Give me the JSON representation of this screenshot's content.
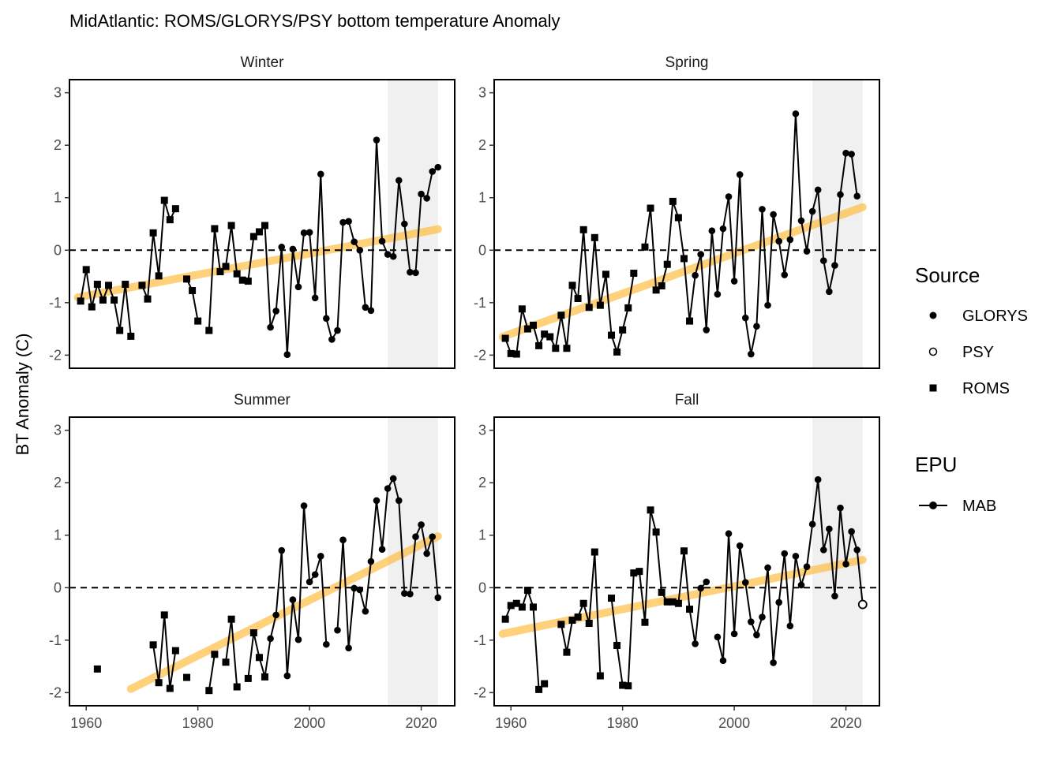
{
  "chart_data": {
    "type": "line",
    "title": "MidAtlantic: ROMS/GLORYS/PSY bottom temperature Anomaly",
    "ylabel": "BT Anomaly (C)",
    "xlabel": "",
    "xlim": [
      1957,
      2026
    ],
    "ylim": [
      -2.25,
      3.25
    ],
    "x_ticks": [
      1960,
      1980,
      2000,
      2020
    ],
    "y_ticks": [
      -2,
      -1,
      0,
      1,
      2,
      3
    ],
    "reference_line": 0,
    "highlight_years": [
      2014,
      2023
    ],
    "grid": false,
    "legend_source": {
      "title": "Source",
      "items": [
        {
          "name": "GLORYS",
          "shape": "filled-circle"
        },
        {
          "name": "PSY",
          "shape": "open-circle"
        },
        {
          "name": "ROMS",
          "shape": "square"
        }
      ]
    },
    "legend_epu": {
      "title": "EPU",
      "items": [
        {
          "name": "MAB",
          "shape": "line-point"
        }
      ]
    },
    "colors": {
      "series": "#000000",
      "trend": "#fdb833",
      "highlight": "#f0f0f0",
      "zero_line": "#000000"
    },
    "panels": [
      {
        "name": "Winter",
        "trend": [
          [
            1958.5,
            -0.9
          ],
          [
            2023,
            0.4
          ]
        ],
        "roms": [
          [
            1959,
            -0.97
          ],
          [
            1960,
            -0.37
          ],
          [
            1961,
            -1.08
          ],
          [
            1962,
            -0.65
          ],
          [
            1963,
            -0.95
          ],
          [
            1964,
            -0.67
          ],
          [
            1965,
            -0.95
          ],
          [
            1966,
            -1.53
          ],
          [
            1967,
            -0.65
          ],
          [
            1968,
            -1.64
          ],
          [
            1970,
            -0.67
          ],
          [
            1971,
            -0.93
          ],
          [
            1972,
            0.33
          ],
          [
            1973,
            -0.49
          ],
          [
            1974,
            0.95
          ],
          [
            1975,
            0.58
          ],
          [
            1976,
            0.79
          ],
          [
            1978,
            -0.55
          ],
          [
            1979,
            -0.77
          ],
          [
            1980,
            -1.35
          ],
          [
            1982,
            -1.53
          ],
          [
            1983,
            0.41
          ],
          [
            1984,
            -0.41
          ],
          [
            1985,
            -0.31
          ],
          [
            1986,
            0.47
          ],
          [
            1987,
            -0.45
          ],
          [
            1988,
            -0.57
          ],
          [
            1989,
            -0.59
          ],
          [
            1990,
            0.26
          ],
          [
            1991,
            0.35
          ],
          [
            1992,
            0.47
          ]
        ],
        "glorys": [
          [
            1993,
            -1.47
          ],
          [
            1994,
            -1.16
          ],
          [
            1995,
            0.06
          ],
          [
            1996,
            -1.99
          ],
          [
            1997,
            0.02
          ],
          [
            1998,
            -0.7
          ],
          [
            1999,
            0.33
          ],
          [
            2000,
            0.34
          ],
          [
            2001,
            -0.91
          ],
          [
            2002,
            1.45
          ],
          [
            2003,
            -1.3
          ],
          [
            2004,
            -1.7
          ],
          [
            2005,
            -1.53
          ],
          [
            2006,
            0.53
          ],
          [
            2007,
            0.55
          ],
          [
            2008,
            0.16
          ],
          [
            2009,
            0.0
          ],
          [
            2010,
            -1.09
          ],
          [
            2011,
            -1.15
          ],
          [
            2012,
            2.1
          ],
          [
            2013,
            0.17
          ],
          [
            2014,
            -0.08
          ],
          [
            2015,
            -0.12
          ],
          [
            2016,
            1.33
          ],
          [
            2017,
            0.5
          ],
          [
            2018,
            -0.42
          ],
          [
            2019,
            -0.43
          ],
          [
            2020,
            1.07
          ],
          [
            2021,
            0.99
          ],
          [
            2022,
            1.5
          ],
          [
            2023,
            1.58
          ]
        ],
        "psy": []
      },
      {
        "name": "Spring",
        "trend": [
          [
            1958.5,
            -1.65
          ],
          [
            2023,
            0.82
          ]
        ],
        "roms": [
          [
            1959,
            -1.68
          ],
          [
            1960,
            -1.97
          ],
          [
            1961,
            -1.98
          ],
          [
            1962,
            -1.12
          ],
          [
            1963,
            -1.5
          ],
          [
            1964,
            -1.43
          ],
          [
            1965,
            -1.82
          ],
          [
            1966,
            -1.6
          ],
          [
            1967,
            -1.65
          ],
          [
            1968,
            -1.87
          ],
          [
            1969,
            -1.24
          ],
          [
            1970,
            -1.87
          ],
          [
            1971,
            -0.67
          ],
          [
            1972,
            -0.92
          ],
          [
            1973,
            0.39
          ],
          [
            1974,
            -1.09
          ],
          [
            1975,
            0.24
          ],
          [
            1976,
            -1.05
          ],
          [
            1977,
            -0.46
          ],
          [
            1978,
            -1.62
          ],
          [
            1979,
            -1.94
          ],
          [
            1980,
            -1.52
          ],
          [
            1981,
            -1.1
          ],
          [
            1982,
            -0.44
          ],
          [
            1984,
            0.06
          ],
          [
            1985,
            0.8
          ],
          [
            1986,
            -0.76
          ],
          [
            1987,
            -0.68
          ],
          [
            1988,
            -0.27
          ],
          [
            1989,
            0.93
          ],
          [
            1990,
            0.62
          ],
          [
            1991,
            -0.16
          ],
          [
            1992,
            -1.35
          ]
        ],
        "glorys": [
          [
            1993,
            -0.48
          ],
          [
            1994,
            -0.08
          ],
          [
            1995,
            -1.52
          ],
          [
            1996,
            0.37
          ],
          [
            1997,
            -0.84
          ],
          [
            1998,
            0.41
          ],
          [
            1999,
            1.02
          ],
          [
            2000,
            -0.59
          ],
          [
            2001,
            1.44
          ],
          [
            2002,
            -1.29
          ],
          [
            2003,
            -1.98
          ],
          [
            2004,
            -1.45
          ],
          [
            2005,
            0.78
          ],
          [
            2006,
            -1.05
          ],
          [
            2007,
            0.68
          ],
          [
            2008,
            0.17
          ],
          [
            2009,
            -0.47
          ],
          [
            2010,
            0.2
          ],
          [
            2011,
            2.6
          ],
          [
            2012,
            0.56
          ],
          [
            2013,
            -0.02
          ],
          [
            2014,
            0.74
          ],
          [
            2015,
            1.15
          ],
          [
            2016,
            -0.2
          ],
          [
            2017,
            -0.79
          ],
          [
            2018,
            -0.29
          ],
          [
            2019,
            1.06
          ],
          [
            2020,
            1.85
          ],
          [
            2021,
            1.83
          ],
          [
            2022,
            1.03
          ]
        ],
        "psy": []
      },
      {
        "name": "Summer",
        "trend": [
          [
            1968,
            -1.93
          ],
          [
            2023,
            0.98
          ]
        ],
        "roms": [
          [
            1962,
            -1.55
          ],
          [
            1972,
            -1.09
          ],
          [
            1973,
            -1.81
          ],
          [
            1974,
            -0.52
          ],
          [
            1975,
            -1.92
          ],
          [
            1976,
            -1.2
          ],
          [
            1978,
            -1.71
          ],
          [
            1982,
            -1.96
          ],
          [
            1983,
            -1.27
          ],
          [
            1985,
            -1.42
          ],
          [
            1986,
            -0.6
          ],
          [
            1987,
            -1.89
          ],
          [
            1989,
            -1.73
          ],
          [
            1990,
            -0.86
          ],
          [
            1991,
            -1.33
          ],
          [
            1992,
            -1.7
          ]
        ],
        "glorys": [
          [
            1993,
            -0.97
          ],
          [
            1994,
            -0.52
          ],
          [
            1995,
            0.71
          ],
          [
            1996,
            -1.68
          ],
          [
            1997,
            -0.23
          ],
          [
            1998,
            -0.99
          ],
          [
            1999,
            1.56
          ],
          [
            2000,
            0.11
          ],
          [
            2001,
            0.25
          ],
          [
            2002,
            0.6
          ],
          [
            2003,
            -1.08
          ],
          [
            2005,
            -0.81
          ],
          [
            2006,
            0.91
          ],
          [
            2007,
            -1.15
          ],
          [
            2008,
            -0.01
          ],
          [
            2009,
            -0.04
          ],
          [
            2010,
            -0.45
          ],
          [
            2011,
            0.5
          ],
          [
            2012,
            1.66
          ],
          [
            2013,
            0.73
          ],
          [
            2014,
            1.89
          ],
          [
            2015,
            2.08
          ],
          [
            2016,
            1.66
          ],
          [
            2017,
            -0.11
          ],
          [
            2018,
            -0.12
          ],
          [
            2019,
            0.97
          ],
          [
            2020,
            1.2
          ],
          [
            2021,
            0.65
          ],
          [
            2022,
            0.97
          ],
          [
            2023,
            -0.19
          ]
        ],
        "psy": []
      },
      {
        "name": "Fall",
        "trend": [
          [
            1958.5,
            -0.88
          ],
          [
            2023,
            0.53
          ]
        ],
        "roms": [
          [
            1959,
            -0.6
          ],
          [
            1960,
            -0.34
          ],
          [
            1961,
            -0.3
          ],
          [
            1962,
            -0.37
          ],
          [
            1963,
            -0.05
          ],
          [
            1964,
            -0.37
          ],
          [
            1965,
            -1.94
          ],
          [
            1966,
            -1.83
          ],
          [
            1969,
            -0.7
          ],
          [
            1970,
            -1.23
          ],
          [
            1971,
            -0.62
          ],
          [
            1972,
            -0.56
          ],
          [
            1973,
            -0.3
          ],
          [
            1974,
            -0.68
          ],
          [
            1975,
            0.68
          ],
          [
            1976,
            -1.68
          ],
          [
            1978,
            -0.2
          ],
          [
            1979,
            -1.1
          ],
          [
            1980,
            -1.86
          ],
          [
            1981,
            -1.87
          ],
          [
            1982,
            0.28
          ],
          [
            1983,
            0.31
          ],
          [
            1984,
            -0.66
          ],
          [
            1985,
            1.48
          ],
          [
            1986,
            1.06
          ],
          [
            1987,
            -0.09
          ],
          [
            1988,
            -0.27
          ],
          [
            1989,
            -0.27
          ],
          [
            1990,
            -0.3
          ],
          [
            1991,
            0.7
          ],
          [
            1992,
            -0.41
          ]
        ],
        "glorys": [
          [
            1993,
            -1.07
          ],
          [
            1994,
            -0.01
          ],
          [
            1995,
            0.11
          ],
          [
            1997,
            -0.94
          ],
          [
            1998,
            -1.39
          ],
          [
            1999,
            1.03
          ],
          [
            2000,
            -0.88
          ],
          [
            2001,
            0.8
          ],
          [
            2002,
            0.1
          ],
          [
            2003,
            -0.65
          ],
          [
            2004,
            -0.9
          ],
          [
            2005,
            -0.56
          ],
          [
            2006,
            0.38
          ],
          [
            2007,
            -1.43
          ],
          [
            2008,
            -0.28
          ],
          [
            2009,
            0.65
          ],
          [
            2010,
            -0.73
          ],
          [
            2011,
            0.6
          ],
          [
            2012,
            0.05
          ],
          [
            2013,
            0.4
          ],
          [
            2014,
            1.21
          ],
          [
            2015,
            2.06
          ],
          [
            2016,
            0.72
          ],
          [
            2017,
            1.12
          ],
          [
            2018,
            -0.16
          ],
          [
            2019,
            1.52
          ],
          [
            2020,
            0.45
          ],
          [
            2021,
            1.07
          ],
          [
            2022,
            0.72
          ]
        ],
        "psy": [
          [
            2023,
            -0.32
          ]
        ]
      }
    ]
  }
}
